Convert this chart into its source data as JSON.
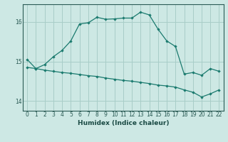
{
  "xlabel": "Humidex (Indice chaleur)",
  "ylabel": "",
  "background_color": "#cde8e4",
  "grid_color": "#a8cdc8",
  "line_color": "#1a7a6e",
  "ylim": [
    13.75,
    16.45
  ],
  "xlim": [
    -0.5,
    22.5
  ],
  "line1_x": [
    0,
    1,
    2,
    3,
    4,
    5,
    6,
    7,
    8,
    9,
    10,
    11,
    12,
    13,
    14,
    15,
    16,
    17,
    18,
    19,
    20,
    21,
    22
  ],
  "line1_y": [
    15.05,
    14.82,
    14.92,
    15.12,
    15.28,
    15.52,
    15.95,
    15.98,
    16.12,
    16.07,
    16.08,
    16.1,
    16.1,
    16.25,
    16.18,
    15.82,
    15.52,
    15.38,
    14.68,
    14.72,
    14.65,
    14.82,
    14.75
  ],
  "line2_x": [
    0,
    1,
    2,
    3,
    4,
    5,
    6,
    7,
    8,
    9,
    10,
    11,
    12,
    13,
    14,
    15,
    16,
    17,
    18,
    19,
    20,
    21,
    22
  ],
  "line2_y": [
    14.85,
    14.82,
    14.78,
    14.75,
    14.72,
    14.7,
    14.67,
    14.64,
    14.62,
    14.58,
    14.55,
    14.52,
    14.5,
    14.47,
    14.44,
    14.4,
    14.38,
    14.35,
    14.28,
    14.22,
    14.1,
    14.18,
    14.28
  ],
  "yticks": [
    14,
    15,
    16
  ],
  "xticks": [
    0,
    1,
    2,
    3,
    4,
    5,
    6,
    7,
    8,
    9,
    10,
    11,
    12,
    13,
    14,
    15,
    16,
    17,
    18,
    19,
    20,
    21,
    22
  ]
}
